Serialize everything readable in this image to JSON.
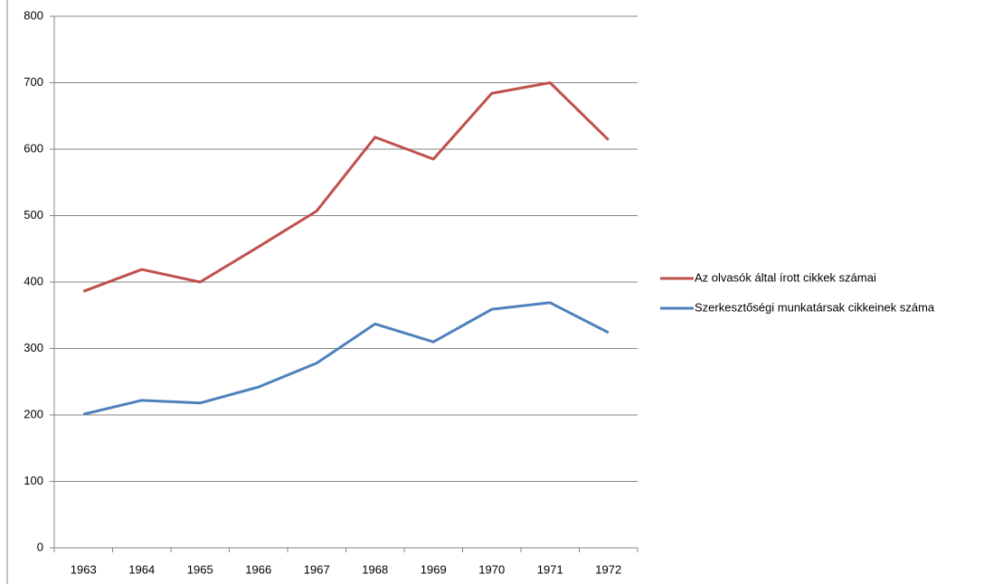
{
  "chart_data": {
    "type": "line",
    "categories": [
      "1963",
      "1964",
      "1965",
      "1966",
      "1967",
      "1968",
      "1969",
      "1970",
      "1971",
      "1972"
    ],
    "series": [
      {
        "name": "Az olvasók által írott cikkek számai",
        "color": "#c0504d",
        "values": [
          386,
          419,
          400,
          453,
          507,
          618,
          585,
          684,
          700,
          614
        ]
      },
      {
        "name": "Szerkesztőségi munkatársak cikkeinek száma",
        "color": "#4f81bd",
        "values": [
          201,
          222,
          218,
          242,
          278,
          337,
          310,
          359,
          369,
          324
        ]
      }
    ],
    "ylim": [
      0,
      800
    ],
    "yticks": [
      0,
      100,
      200,
      300,
      400,
      500,
      600,
      700,
      800
    ],
    "grid": true,
    "legend": "right"
  }
}
